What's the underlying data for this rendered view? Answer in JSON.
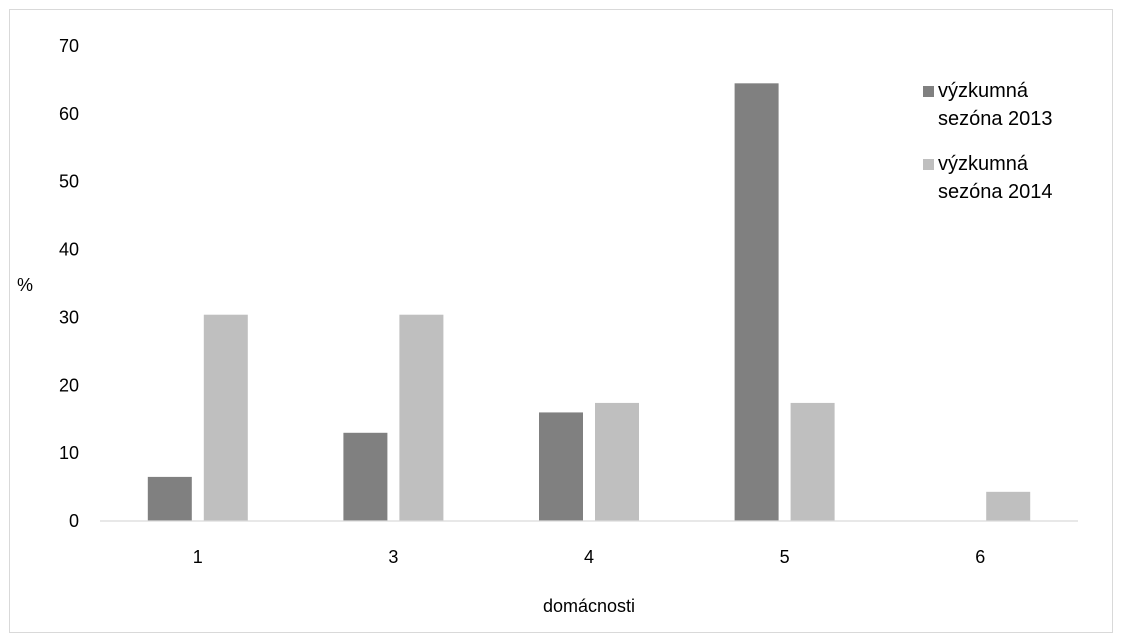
{
  "chart_data": {
    "type": "bar",
    "title": "",
    "xlabel": "domácnosti",
    "ylabel": "%",
    "ylim": [
      0,
      70
    ],
    "yticks": [
      "0",
      "10",
      "20",
      "30",
      "40",
      "50",
      "60",
      "70"
    ],
    "categories": [
      "1",
      "3",
      "4",
      "5",
      "6"
    ],
    "series": [
      {
        "name": "výzkumná sezóna 2013",
        "name_lines": [
          "výzkumná",
          "sezóna 2013"
        ],
        "color": "#808080",
        "values": [
          6.5,
          13,
          16,
          64.5,
          0
        ]
      },
      {
        "name": "výzkumná sezóna 2014",
        "name_lines": [
          "výzkumná",
          "sezóna 2014"
        ],
        "color": "#bfbfbf",
        "values": [
          30.4,
          30.4,
          17.4,
          17.4,
          4.3
        ]
      }
    ],
    "grid": false,
    "legend": "top-right"
  }
}
